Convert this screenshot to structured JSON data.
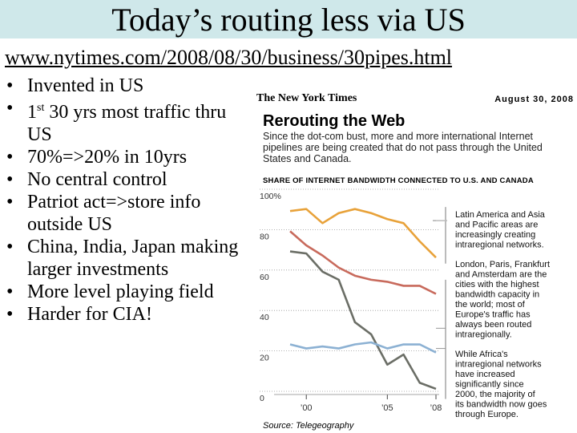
{
  "slide": {
    "title": "Today’s routing less via US",
    "url": "www.nytimes.com/2008/08/30/business/30pipes.html",
    "bullets": [
      {
        "pre": "Invented in US",
        "sup": "",
        "post": ""
      },
      {
        "pre": "1",
        "sup": "st",
        "post": " 30 yrs most traffic thru US"
      },
      {
        "pre": "70%=>20% in 10yrs",
        "sup": "",
        "post": ""
      },
      {
        "pre": "No central control",
        "sup": "",
        "post": ""
      },
      {
        "pre": "Patriot act=>store info outside US",
        "sup": "",
        "post": ""
      },
      {
        "pre": "China, India, Japan making larger investments",
        "sup": "",
        "post": ""
      },
      {
        "pre": "More level playing field",
        "sup": "",
        "post": ""
      },
      {
        "pre": "Harder for CIA!",
        "sup": "",
        "post": ""
      }
    ],
    "bullet_glyph": "•"
  },
  "clipping": {
    "masthead": "The New York Times",
    "date": "August 30, 2008",
    "title": "Rerouting the Web",
    "subtitle": "Since the dot-com bust, more and more international Internet pipelines are being created that do not pass through the United States and Canada.",
    "source": "Source: Telegeography"
  },
  "chart_data": {
    "type": "line",
    "title": "SHARE OF INTERNET BANDWIDTH CONNECTED TO U.S. AND CANADA",
    "x": [
      1999,
      2000,
      2001,
      2002,
      2003,
      2004,
      2005,
      2006,
      2007,
      2008
    ],
    "xticks": [
      {
        "value": 2000,
        "label": "’00"
      },
      {
        "value": 2005,
        "label": "’05"
      },
      {
        "value": 2008,
        "label": "’08"
      }
    ],
    "ylim": [
      0,
      100
    ],
    "yticks": [
      {
        "value": 100,
        "label": "100%"
      },
      {
        "value": 80,
        "label": "80"
      },
      {
        "value": 60,
        "label": "60"
      },
      {
        "value": 40,
        "label": "40"
      },
      {
        "value": 20,
        "label": "20"
      },
      {
        "value": 0,
        "label": "0"
      }
    ],
    "series": [
      {
        "key": "latam",
        "color": "#e8a23a",
        "values": [
          90,
          91,
          84,
          89,
          91,
          89,
          86,
          84,
          75,
          67
        ]
      },
      {
        "key": "asia",
        "color": "#c86a5c",
        "values": [
          80,
          73,
          68,
          62,
          58,
          56,
          55,
          53,
          53,
          49
        ]
      },
      {
        "key": "europe",
        "color": "#6b6e66",
        "values": [
          70,
          69,
          60,
          56,
          35,
          29,
          14,
          19,
          5,
          2
        ]
      },
      {
        "key": "africa",
        "color": "#8cb1d3",
        "values": [
          24,
          22,
          23,
          22,
          24,
          25,
          22,
          24,
          24,
          20
        ]
      }
    ],
    "annotations": [
      {
        "series": "latam",
        "text": "Latin America and Asia and Pacific areas are increasingly creating intraregional networks.",
        "bold": "Latin America Asia and Pacific"
      },
      {
        "series": "europe",
        "text": "London, Paris, Frankfurt and Amsterdam are the cities with the highest bandwidth capacity in the world; most of Europe's traffic has always been routed intraregionally."
      },
      {
        "series": "africa",
        "text": "While Africa's intraregional networks have increased significantly since 2000, the majority of its bandwidth now goes through Europe."
      }
    ],
    "grid": "dotted-horizontal",
    "legend": "right-annotations"
  }
}
